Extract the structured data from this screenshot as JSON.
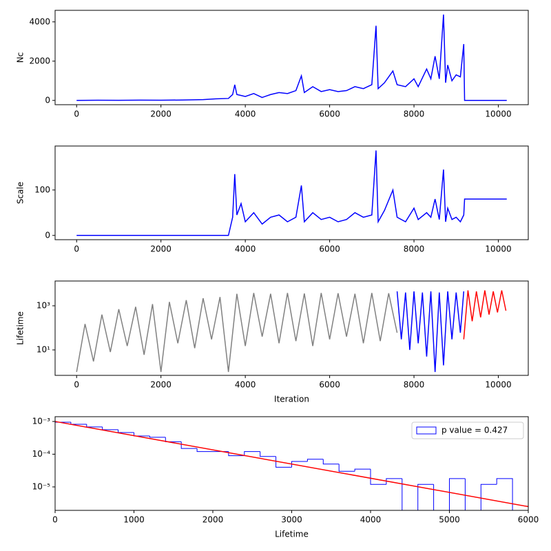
{
  "chart_data": [
    {
      "type": "line",
      "ylabel": "Nc",
      "xlim": [
        -510,
        10710
      ],
      "xticks": [
        0,
        2000,
        4000,
        6000,
        8000,
        10000
      ],
      "ylim": [
        -218,
        4588
      ],
      "yticks": [
        0,
        2000,
        4000
      ],
      "series": [
        {
          "color": "#0000ff",
          "x": [
            0,
            500,
            1000,
            1500,
            2000,
            2500,
            3000,
            3300,
            3600,
            3700,
            3750,
            3800,
            3900,
            4000,
            4200,
            4400,
            4600,
            4800,
            5000,
            5200,
            5330,
            5400,
            5600,
            5800,
            6000,
            6200,
            6400,
            6600,
            6800,
            7000,
            7100,
            7150,
            7300,
            7500,
            7600,
            7800,
            8000,
            8100,
            8300,
            8400,
            8500,
            8600,
            8700,
            8750,
            8800,
            8900,
            9000,
            9100,
            9180,
            9200,
            10200
          ],
          "values": [
            0,
            10,
            5,
            15,
            10,
            20,
            40,
            80,
            100,
            300,
            800,
            300,
            250,
            200,
            350,
            150,
            300,
            400,
            350,
            500,
            1250,
            400,
            700,
            450,
            550,
            450,
            500,
            700,
            600,
            800,
            3800,
            600,
            900,
            1500,
            800,
            700,
            1100,
            700,
            1600,
            1100,
            2250,
            1100,
            4370,
            900,
            1800,
            1000,
            1300,
            1200,
            2870,
            0,
            0
          ]
        }
      ]
    },
    {
      "type": "line",
      "ylabel": "Scale",
      "xlim": [
        -510,
        10710
      ],
      "xticks": [
        0,
        2000,
        4000,
        6000,
        8000,
        10000
      ],
      "ylim": [
        -9.4,
        196.8
      ],
      "yticks": [
        0,
        100
      ],
      "series": [
        {
          "color": "#0000ff",
          "x": [
            0,
            500,
            1000,
            1500,
            2000,
            2500,
            3000,
            3300,
            3600,
            3700,
            3750,
            3800,
            3900,
            4000,
            4200,
            4400,
            4600,
            4800,
            5000,
            5200,
            5330,
            5400,
            5600,
            5800,
            6000,
            6200,
            6400,
            6600,
            6800,
            7000,
            7100,
            7150,
            7300,
            7500,
            7600,
            7800,
            8000,
            8100,
            8300,
            8400,
            8500,
            8600,
            8700,
            8750,
            8800,
            8900,
            9000,
            9100,
            9180,
            9200,
            10200
          ],
          "values": [
            0,
            0,
            0,
            0,
            0,
            0,
            0,
            0,
            0,
            40,
            135,
            45,
            70,
            30,
            50,
            25,
            40,
            45,
            30,
            40,
            110,
            30,
            50,
            35,
            40,
            30,
            35,
            50,
            40,
            45,
            187,
            30,
            55,
            100,
            40,
            30,
            60,
            35,
            50,
            40,
            80,
            35,
            145,
            30,
            60,
            35,
            40,
            30,
            45,
            80,
            80
          ]
        }
      ]
    },
    {
      "type": "line",
      "ylabel": "Lifetime",
      "xlabel": "Iteration",
      "ylog": true,
      "xlim": [
        -510,
        10710
      ],
      "xticks": [
        0,
        2000,
        4000,
        6000,
        8000,
        10000
      ],
      "ylim": [
        0.7,
        13300
      ],
      "yticks": [
        {
          "value": 10,
          "label": "10¹"
        },
        {
          "value": 1000,
          "label": "10³"
        }
      ],
      "series": [
        {
          "color": "#808080",
          "x": [
            0,
            200,
            400,
            600,
            800,
            1000,
            1200,
            1400,
            1600,
            1800,
            2000,
            2200,
            2400,
            2600,
            2800,
            3000,
            3200,
            3400,
            3600,
            3800,
            4000,
            4200,
            4400,
            4600,
            4800,
            5000,
            5200,
            5400,
            5600,
            5800,
            6000,
            6200,
            6400,
            6600,
            6800,
            7000,
            7200,
            7400,
            7600
          ],
          "values": [
            1,
            150,
            3,
            400,
            8,
            700,
            15,
            900,
            6,
            1200,
            1,
            1500,
            20,
            1800,
            12,
            2200,
            30,
            2500,
            1,
            3500,
            15,
            3800,
            40,
            3500,
            20,
            3800,
            25,
            3600,
            15,
            3800,
            30,
            3700,
            40,
            3500,
            20,
            3800,
            25,
            3700,
            60
          ]
        },
        {
          "color": "#0000ff",
          "x": [
            7600,
            7700,
            7800,
            7900,
            8000,
            8100,
            8200,
            8300,
            8400,
            8500,
            8600,
            8700,
            8800,
            8900,
            9000,
            9100,
            9180
          ],
          "values": [
            4500,
            30,
            4000,
            10,
            4500,
            20,
            4000,
            5,
            4500,
            1,
            4000,
            2,
            4500,
            30,
            4000,
            60,
            4500
          ]
        },
        {
          "color": "#ff0000",
          "x": [
            9180,
            9280,
            9380,
            9480,
            9580,
            9680,
            9780,
            9880,
            9980,
            10080,
            10180
          ],
          "values": [
            30,
            5000,
            200,
            4500,
            300,
            5000,
            400,
            4500,
            500,
            5000,
            600
          ]
        }
      ]
    },
    {
      "type": "histogram",
      "xlabel": "Lifetime",
      "ylog": true,
      "xlim": [
        0,
        6000
      ],
      "xticks": [
        0,
        1000,
        2000,
        3000,
        4000,
        5000,
        6000
      ],
      "ylim": [
        1.92e-06,
        0.0014
      ],
      "yticks": [
        {
          "value": 1e-05,
          "label": "10⁻⁵"
        },
        {
          "value": 0.0001,
          "label": "10⁻⁴"
        },
        {
          "value": 0.001,
          "label": "10⁻³"
        }
      ],
      "legend": "upper right",
      "series": [
        {
          "name": "p value = 0.427",
          "color": "#0000ff",
          "bins": [
            0,
            200,
            400,
            600,
            800,
            1000,
            1200,
            1400,
            1600,
            1800,
            2000,
            2200,
            2400,
            2600,
            2800,
            3000,
            3200,
            3400,
            3600,
            3800,
            4000,
            4200,
            4400,
            4600,
            4800,
            5000,
            5200,
            5400,
            5600,
            5800
          ],
          "values": [
            0.00095,
            0.00082,
            0.00068,
            0.00056,
            0.00046,
            0.00036,
            0.00033,
            0.00024,
            0.00015,
            0.00012,
            0.00012,
            9e-05,
            0.00012,
            8.5e-05,
            4e-05,
            6e-05,
            7e-05,
            5e-05,
            3e-05,
            3.5e-05,
            1.2e-05,
            1.8e-05,
            0,
            1.2e-05,
            0,
            1.8e-05,
            0,
            1.2e-05,
            1.8e-05
          ]
        }
      ],
      "fit": {
        "color": "#ff0000",
        "x": [
          0,
          6000
        ],
        "values": [
          0.001,
          2.5e-06
        ]
      }
    }
  ]
}
